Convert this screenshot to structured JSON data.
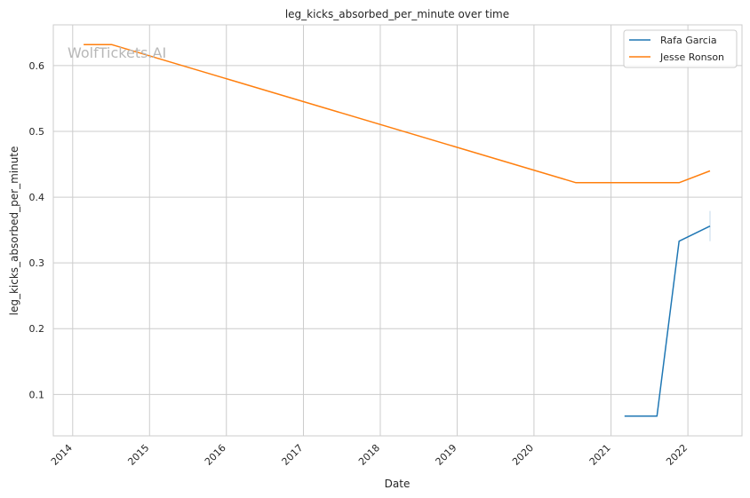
{
  "chart_data": {
    "type": "line",
    "title": "leg_kicks_absorbed_per_minute over time",
    "xlabel": "Date",
    "ylabel": "leg_kicks_absorbed_per_minute",
    "watermark": "WolfTickets.AI",
    "x_ticks": [
      "2014",
      "2015",
      "2016",
      "2017",
      "2018",
      "2019",
      "2020",
      "2021",
      "2022"
    ],
    "y_ticks": [
      0.1,
      0.2,
      0.3,
      0.4,
      0.5,
      0.6
    ],
    "xlim": [
      "2013-10-01",
      "2022-09-15"
    ],
    "ylim": [
      0.037,
      0.662
    ],
    "grid": true,
    "legend_position": "top-right",
    "series": [
      {
        "name": "Rafa Garcia",
        "color": "#1f77b4",
        "points": [
          {
            "x": "2021-03-06",
            "y": 0.067
          },
          {
            "x": "2021-08-07",
            "y": 0.067
          },
          {
            "x": "2021-11-20",
            "y": 0.333
          },
          {
            "x": "2022-04-16",
            "y": 0.356
          }
        ],
        "error_band": {
          "x": "2022-04-16",
          "y_low": 0.333,
          "y_high": 0.379
        }
      },
      {
        "name": "Jesse Ronson",
        "color": "#ff7f0e",
        "points": [
          {
            "x": "2014-02-22",
            "y": 0.632
          },
          {
            "x": "2014-07-05",
            "y": 0.632
          },
          {
            "x": "2020-07-18",
            "y": 0.422
          },
          {
            "x": "2021-11-20",
            "y": 0.422
          },
          {
            "x": "2022-04-16",
            "y": 0.44
          }
        ]
      }
    ]
  }
}
